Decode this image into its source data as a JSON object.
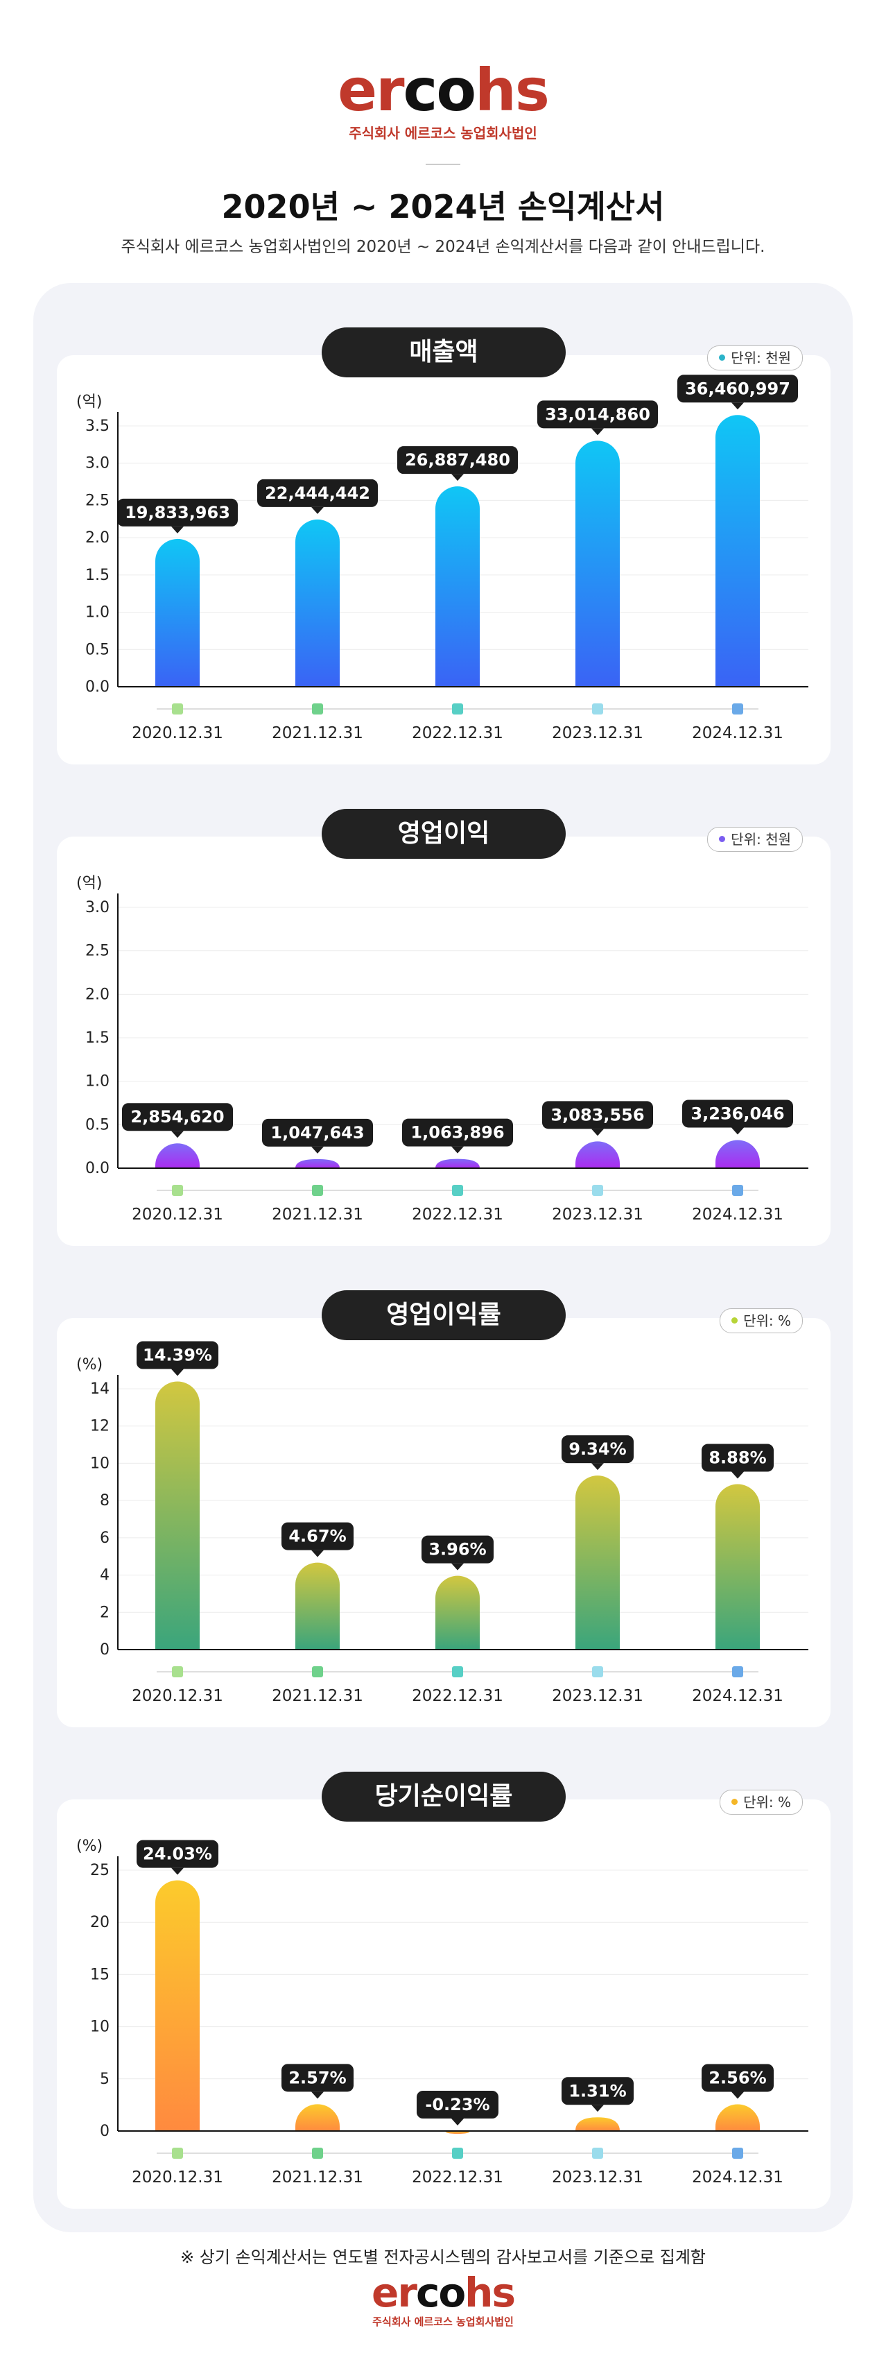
{
  "brand": {
    "logo_text": "ercohs",
    "logo_parts": [
      "er",
      "co",
      "hs"
    ],
    "company_prefix": "주식회사",
    "company_name": "에르코스 농업회사법인"
  },
  "header": {
    "title": "2020년 ~ 2024년 손익계산서",
    "subtitle": "주식회사 에르코스 농업회사법인의 2020년 ~ 2024년 손익계산서를 다음과 같이 안내드립니다."
  },
  "footnote": "※ 상기 손익계산서는 연도별 전자공시스템의 감사보고서를 기준으로 집계함",
  "chart_data": [
    {
      "type": "bar",
      "title": "매출액",
      "unit_label": "단위: 천원",
      "unit_dot_color": "#2bb3c9",
      "ylabel": "(억)",
      "ylim": [
        0,
        3.5
      ],
      "yticks": [
        "0.0",
        "0.5",
        "1.0",
        "1.5",
        "2.0",
        "2.5",
        "3.0",
        "3.5"
      ],
      "grid": true,
      "categories": [
        "2020.12.31",
        "2021.12.31",
        "2022.12.31",
        "2023.12.31",
        "2024.12.31"
      ],
      "values": [
        1.9833963,
        2.2444442,
        2.688748,
        3.301486,
        3.6460997
      ],
      "labels": [
        "19,833,963",
        "22,444,442",
        "26,887,480",
        "33,014,860",
        "36,460,997"
      ],
      "gradient": [
        "#10c6f5",
        "#3a63f5"
      ]
    },
    {
      "type": "bar",
      "title": "영업이익",
      "unit_label": "단위: 천원",
      "unit_dot_color": "#7a5cf0",
      "ylabel": "(억)",
      "ylim": [
        0,
        3.0
      ],
      "yticks": [
        "0.0",
        "0.5",
        "1.0",
        "1.5",
        "2.0",
        "2.5",
        "3.0"
      ],
      "grid": true,
      "categories": [
        "2020.12.31",
        "2021.12.31",
        "2022.12.31",
        "2023.12.31",
        "2024.12.31"
      ],
      "values": [
        0.285462,
        0.1047643,
        0.1063896,
        0.3083556,
        0.3236046
      ],
      "labels": [
        "2,854,620",
        "1,047,643",
        "1,063,896",
        "3,083,556",
        "3,236,046"
      ],
      "gradient": [
        "#7f6cf8",
        "#ab2cf0"
      ]
    },
    {
      "type": "bar",
      "title": "영업이익률",
      "unit_label": "단위: %",
      "unit_dot_color": "#b7d437",
      "ylabel": "(%)",
      "ylim": [
        0,
        14
      ],
      "yticks": [
        "0",
        "2",
        "4",
        "6",
        "8",
        "10",
        "12",
        "14"
      ],
      "grid": true,
      "categories": [
        "2020.12.31",
        "2021.12.31",
        "2022.12.31",
        "2023.12.31",
        "2024.12.31"
      ],
      "values": [
        14.39,
        4.67,
        3.96,
        9.34,
        8.88
      ],
      "labels": [
        "14.39%",
        "4.67%",
        "3.96%",
        "9.34%",
        "8.88%"
      ],
      "gradient": [
        "#d2c740",
        "#3aa57c"
      ]
    },
    {
      "type": "bar",
      "title": "당기순이익률",
      "unit_label": "단위: %",
      "unit_dot_color": "#f4b627",
      "ylabel": "(%)",
      "ylim": [
        0,
        25
      ],
      "yticks": [
        "0",
        "5",
        "10",
        "15",
        "20",
        "25"
      ],
      "grid": true,
      "categories": [
        "2020.12.31",
        "2021.12.31",
        "2022.12.31",
        "2023.12.31",
        "2024.12.31"
      ],
      "values": [
        24.03,
        2.57,
        -0.23,
        1.31,
        2.56
      ],
      "labels": [
        "24.03%",
        "2.57%",
        "-0.23%",
        "1.31%",
        "2.56%"
      ],
      "gradient": [
        "#fccb2c",
        "#ff8a3f"
      ]
    }
  ],
  "legend_marker_colors": [
    "#a8e08e",
    "#6fd18b",
    "#57cfc5",
    "#9adcec",
    "#6aa9e8"
  ]
}
